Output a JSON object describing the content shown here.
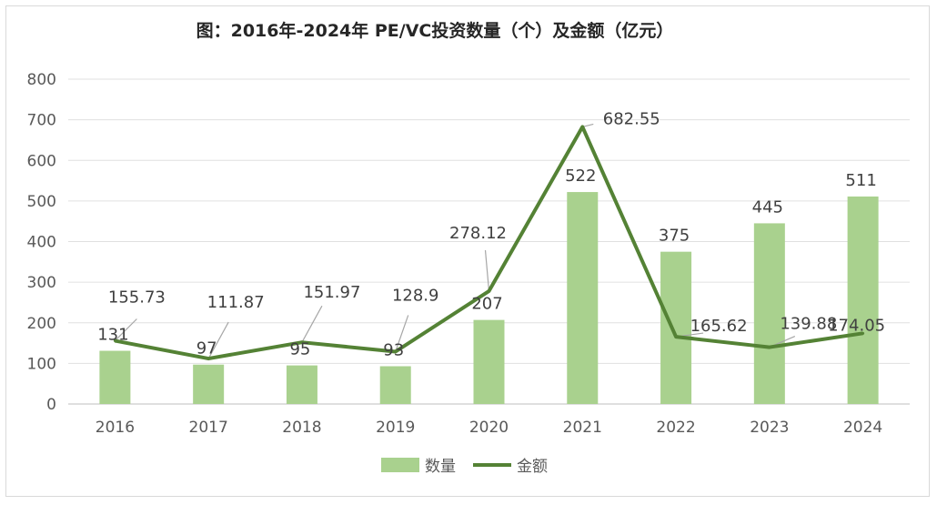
{
  "chart_data": {
    "type": "bar",
    "title": "图：2016年-2024年 PE/VC投资数量（个）及金额（亿元）",
    "xlabel": "",
    "ylabel": "",
    "ylim": [
      0,
      800
    ],
    "yticks": [
      0,
      100,
      200,
      300,
      400,
      500,
      600,
      700,
      800
    ],
    "grid": true,
    "legend_position": "bottom",
    "categories": [
      "2016",
      "2017",
      "2018",
      "2019",
      "2020",
      "2021",
      "2022",
      "2023",
      "2024"
    ],
    "series": [
      {
        "name": "数量",
        "type": "bar",
        "color": "#a9d18e",
        "values": [
          131,
          97,
          95,
          93,
          207,
          522,
          375,
          445,
          511
        ],
        "labels": [
          "131",
          "97",
          "95",
          "93",
          "207",
          "522",
          "375",
          "445",
          "511"
        ]
      },
      {
        "name": "金额",
        "type": "line",
        "color": "#548235",
        "values": [
          155.73,
          111.87,
          151.97,
          128.9,
          278.12,
          682.55,
          165.62,
          139.88,
          174.05
        ],
        "labels": [
          "155.73",
          "111.87",
          "151.97",
          "128.9",
          "278.12",
          "682.55",
          "165.62",
          "139.88",
          "174.05"
        ]
      }
    ]
  }
}
